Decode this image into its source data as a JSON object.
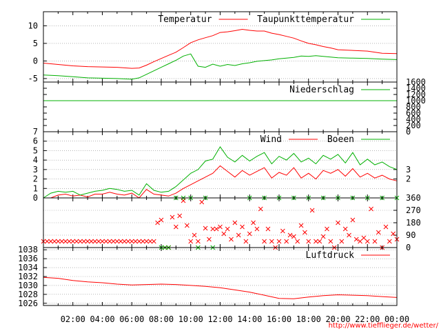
{
  "source_url": "http://www.tiefflieger.de/wetter/",
  "colors": {
    "red": "#ff0000",
    "green": "#00b000",
    "grid": "#888888",
    "axis": "#000000"
  },
  "x_tick_labels": [
    "02:00",
    "04:00",
    "06:00",
    "08:00",
    "10:00",
    "12:00",
    "14:00",
    "16:00",
    "18:00",
    "20:00",
    "22:00",
    "00:00"
  ],
  "chart_data": [
    {
      "type": "line",
      "panel": "temperature",
      "xlim": [
        0,
        24
      ],
      "ylim": [
        -6,
        14
      ],
      "yticks": [
        -5,
        0,
        5,
        10
      ],
      "grid": true,
      "legend": "top-right",
      "series": [
        {
          "name": "Temperatur",
          "color": "#ff0000",
          "x": [
            0,
            1,
            2,
            3,
            4,
            5,
            6,
            6.5,
            7,
            7.5,
            8,
            8.5,
            9,
            9.5,
            10,
            10.5,
            11,
            11.5,
            12,
            12.5,
            13,
            13.5,
            14,
            14.5,
            15,
            15.5,
            16,
            16.5,
            17,
            17.5,
            18,
            18.5,
            19,
            19.5,
            20,
            21,
            22,
            23,
            24
          ],
          "y": [
            -0.6,
            -1.0,
            -1.4,
            -1.6,
            -1.7,
            -1.8,
            -2.1,
            -2.0,
            -1.2,
            -0.2,
            0.7,
            1.6,
            2.5,
            3.8,
            5.2,
            6.0,
            6.6,
            7.2,
            8.1,
            8.3,
            8.6,
            9.0,
            8.7,
            8.5,
            8.5,
            7.9,
            7.5,
            7.0,
            6.5,
            5.7,
            5.0,
            4.6,
            4.1,
            3.7,
            3.2,
            3.0,
            2.8,
            2.2,
            2.1
          ]
        },
        {
          "name": "Taupunkttemperatur",
          "color": "#00b000",
          "x": [
            0,
            1,
            2,
            3,
            4,
            5,
            6,
            6.5,
            7,
            7.5,
            8,
            8.5,
            9,
            9.5,
            10,
            10.5,
            11,
            11.5,
            12,
            12.5,
            13,
            13.5,
            14,
            14.5,
            15,
            15.5,
            16,
            16.5,
            17,
            17.5,
            18,
            18.5,
            19,
            19.5,
            20,
            21,
            22,
            23,
            24
          ],
          "y": [
            -4.0,
            -4.2,
            -4.5,
            -4.8,
            -4.9,
            -5.0,
            -5.2,
            -4.8,
            -3.8,
            -2.8,
            -1.8,
            -0.8,
            0.2,
            1.4,
            2.0,
            -1.5,
            -1.8,
            -0.9,
            -1.5,
            -1.0,
            -1.3,
            -0.8,
            -0.5,
            -0.1,
            0.1,
            0.3,
            0.6,
            0.8,
            1.0,
            1.4,
            1.3,
            1.5,
            1.3,
            1.1,
            0.9,
            0.8,
            0.7,
            0.5,
            0.4
          ]
        }
      ]
    },
    {
      "type": "line",
      "panel": "precipitation",
      "xlim": [
        0,
        24
      ],
      "ylim": [
        0,
        1600
      ],
      "yticks": [
        0,
        200,
        400,
        600,
        800,
        1000,
        1200,
        1400,
        1600
      ],
      "legend": "top-right",
      "series": [
        {
          "name": "Niederschlag",
          "color": "#00b000",
          "x": [
            0,
            24
          ],
          "y": [
            1000,
            1000
          ]
        }
      ]
    },
    {
      "type": "line",
      "panel": "wind",
      "xlim": [
        0,
        24
      ],
      "ylim": [
        0,
        7
      ],
      "yticks": [
        0,
        1,
        2,
        3,
        4,
        5,
        6,
        7
      ],
      "yticks_right": [
        2,
        3
      ],
      "grid": true,
      "legend": "top-right",
      "series": [
        {
          "name": "Wind",
          "color": "#ff0000",
          "x": [
            0,
            0.5,
            1,
            1.5,
            2,
            2.5,
            3,
            3.5,
            4,
            4.5,
            5,
            5.5,
            6,
            6.5,
            7,
            7.5,
            8,
            8.5,
            9,
            9.5,
            10,
            10.5,
            11,
            11.5,
            12,
            12.5,
            13,
            13.5,
            14,
            14.5,
            15,
            15.5,
            16,
            16.5,
            17,
            17.5,
            18,
            18.5,
            19,
            19.5,
            20,
            20.5,
            21,
            21.5,
            22,
            22.5,
            23,
            23.5,
            24
          ],
          "y": [
            0,
            0,
            0.3,
            0.4,
            0.2,
            0.3,
            0.1,
            0.4,
            0.4,
            0.6,
            0.4,
            0.3,
            0.5,
            0,
            0.9,
            0.4,
            0.3,
            0.2,
            0.5,
            1.0,
            1.4,
            1.8,
            2.2,
            2.6,
            3.4,
            2.8,
            2.2,
            2.9,
            2.4,
            2.8,
            3.2,
            2.1,
            2.7,
            2.4,
            3.2,
            2.1,
            2.6,
            2.0,
            2.9,
            2.6,
            3.0,
            2.3,
            3.1,
            2.2,
            2.6,
            2.1,
            2.4,
            2.0,
            1.8
          ]
        },
        {
          "name": "Boeen",
          "color": "#00b000",
          "x": [
            0,
            0.5,
            1,
            1.5,
            2,
            2.5,
            3,
            3.5,
            4,
            4.5,
            5,
            5.5,
            6,
            6.5,
            7,
            7.5,
            8,
            8.5,
            9,
            9.5,
            10,
            10.5,
            11,
            11.5,
            12,
            12.5,
            13,
            13.5,
            14,
            14.5,
            15,
            15.5,
            16,
            16.5,
            17,
            17.5,
            18,
            18.5,
            19,
            19.5,
            20,
            20.5,
            21,
            21.5,
            22,
            22.5,
            23,
            23.5,
            24
          ],
          "y": [
            0,
            0.5,
            0.7,
            0.6,
            0.7,
            0.3,
            0.5,
            0.7,
            0.8,
            1.0,
            0.9,
            0.7,
            0.8,
            0.3,
            1.5,
            0.8,
            0.6,
            0.7,
            1.2,
            1.9,
            2.6,
            3.0,
            3.9,
            4.1,
            5.4,
            4.3,
            3.8,
            4.5,
            3.9,
            4.4,
            4.8,
            3.6,
            4.4,
            4.0,
            4.7,
            3.8,
            4.2,
            3.6,
            4.5,
            4.1,
            4.6,
            3.7,
            4.8,
            3.5,
            4.1,
            3.5,
            3.8,
            3.3,
            3.0
          ]
        }
      ]
    },
    {
      "type": "scatter",
      "panel": "wind_direction",
      "xlim": [
        0,
        24
      ],
      "ylim": [
        0,
        360
      ],
      "yticks_right": [
        0,
        90,
        180,
        270,
        360
      ],
      "grid": true,
      "series": [
        {
          "name": "",
          "color": "#ff0000",
          "marker": "x",
          "x": [
            0,
            0.25,
            0.5,
            0.75,
            1,
            1.25,
            1.5,
            1.75,
            2,
            2.25,
            2.5,
            2.75,
            3,
            3.25,
            3.5,
            3.75,
            4,
            4.25,
            4.5,
            4.75,
            5,
            5.25,
            5.5,
            5.75,
            6,
            6.25,
            6.5,
            6.75,
            7,
            7.25,
            7.5,
            7.75,
            8,
            8.25,
            8.5,
            8.75,
            9,
            9.25,
            9.5,
            9.75,
            10,
            10.25,
            10.5,
            10.75,
            11,
            11.25,
            11.5,
            11.75,
            12,
            12.25,
            12.5,
            12.75,
            13,
            13.25,
            13.5,
            13.75,
            14,
            14.25,
            14.5,
            14.75,
            15,
            15.25,
            15.5,
            15.75,
            16,
            16.25,
            16.5,
            16.75,
            17,
            17.25,
            17.5,
            17.75,
            18,
            18.25,
            18.5,
            18.75,
            19,
            19.25,
            19.5,
            19.75,
            20,
            20.25,
            20.5,
            20.75,
            21,
            21.25,
            21.5,
            21.75,
            22,
            22.25,
            22.5,
            22.75,
            23,
            23.25,
            23.5,
            23.75,
            24
          ],
          "y": [
            45,
            45,
            45,
            45,
            45,
            45,
            45,
            45,
            45,
            45,
            45,
            45,
            45,
            45,
            45,
            45,
            45,
            45,
            45,
            45,
            45,
            45,
            45,
            45,
            45,
            45,
            45,
            45,
            45,
            45,
            45,
            180,
            200,
            0,
            0,
            220,
            150,
            230,
            340,
            160,
            45,
            90,
            45,
            330,
            140,
            60,
            135,
            135,
            150,
            100,
            135,
            60,
            180,
            90,
            150,
            45,
            100,
            180,
            135,
            280,
            45,
            135,
            45,
            0,
            45,
            120,
            45,
            90,
            80,
            45,
            160,
            110,
            45,
            270,
            45,
            45,
            80,
            135,
            45,
            0,
            180,
            45,
            135,
            90,
            200,
            60,
            45,
            70,
            45,
            280,
            45,
            110,
            0,
            150,
            45,
            100,
            60
          ]
        },
        {
          "name": "",
          "color": "#00b000",
          "marker": "x",
          "x": [
            8,
            8.25,
            8.5,
            9,
            9.5,
            10,
            10.5,
            11,
            11.5,
            14,
            15,
            16,
            17,
            18,
            19,
            20,
            21,
            22,
            23,
            24
          ],
          "y": [
            0,
            0,
            0,
            360,
            360,
            360,
            0,
            360,
            0,
            360,
            360,
            360,
            360,
            360,
            360,
            360,
            360,
            360,
            360,
            360
          ]
        }
      ]
    },
    {
      "type": "line",
      "panel": "pressure",
      "xlim": [
        0,
        24
      ],
      "ylim": [
        1025.5,
        1038.5
      ],
      "yticks": [
        1026,
        1028,
        1030,
        1032,
        1034,
        1036,
        1038
      ],
      "grid": true,
      "legend": "top-right",
      "series": [
        {
          "name": "Luftdruck",
          "color": "#ff0000",
          "x": [
            0,
            1,
            2,
            3,
            4,
            5,
            6,
            7,
            8,
            9,
            10,
            11,
            12,
            13,
            14,
            15,
            16,
            17,
            18,
            19,
            20,
            21,
            22,
            23,
            24
          ],
          "y": [
            1031.8,
            1031.6,
            1031.1,
            1030.8,
            1030.6,
            1030.3,
            1030.1,
            1030.2,
            1030.3,
            1030.2,
            1030.0,
            1029.8,
            1029.5,
            1029.0,
            1028.5,
            1027.8,
            1027.1,
            1027.0,
            1027.4,
            1027.7,
            1027.9,
            1027.8,
            1027.7,
            1027.5,
            1027.3
          ]
        }
      ]
    }
  ]
}
